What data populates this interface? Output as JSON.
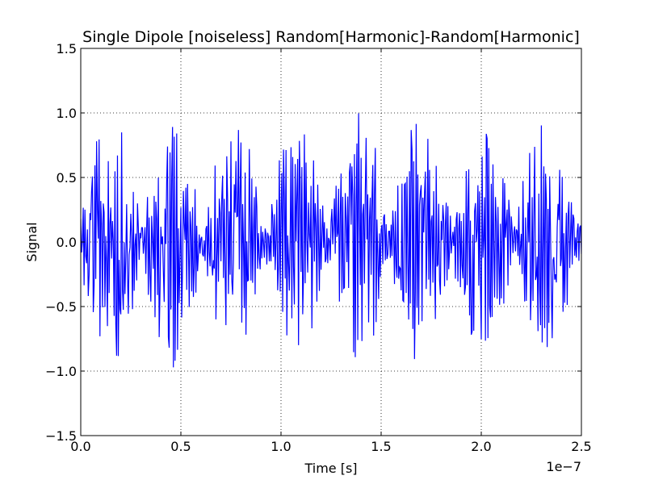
{
  "chart_data": {
    "type": "line",
    "title": "Single Dipole [noiseless] Random[Harmonic]-Random[Harmonic]",
    "xlabel": "Time [s]",
    "ylabel": "Signal",
    "x_offset_label": "1e−7",
    "xlim": [
      0.0,
      2.5e-07
    ],
    "ylim": [
      -1.5,
      1.5
    ],
    "x_ticks": [
      0.0,
      5e-08,
      1e-07,
      1.5e-07,
      2e-07,
      2.5e-07
    ],
    "x_tick_labels": [
      "0.0",
      "0.5",
      "1.0",
      "1.5",
      "2.0",
      "2.5"
    ],
    "y_ticks": [
      -1.5,
      -1.0,
      -0.5,
      0.0,
      0.5,
      1.0,
      1.5
    ],
    "y_tick_labels": [
      "−1.5",
      "−1.0",
      "−0.5",
      "0.0",
      "0.5",
      "1.0",
      "1.5"
    ],
    "grid": true,
    "series": [
      {
        "color": "#0000ff",
        "sample_count": 600,
        "envelope": {
          "beat_period": 3.1e-08,
          "first_peak": 1.5e-08,
          "amplitude": 1.0
        },
        "x_range": [
          0.0,
          2.5e-07
        ],
        "y_range": [
          -1.0,
          1.0
        ]
      }
    ]
  }
}
